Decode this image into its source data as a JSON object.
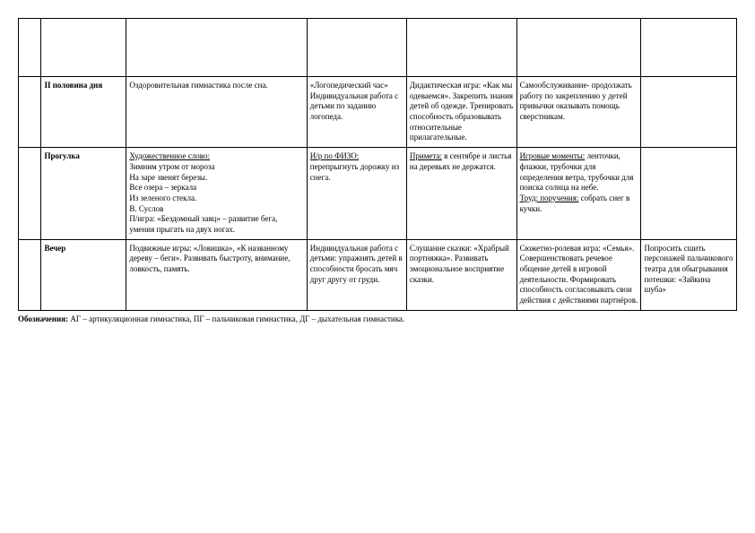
{
  "rows": [
    {
      "c1": "",
      "c2": "",
      "c3": "",
      "c4": "",
      "c5": "",
      "c6": ""
    },
    {
      "c1_bold": "II половина дня",
      "c2": "Оздоровительная гимнастика после сна.",
      "c3": "«Логопедический час» Индивидуальная работа с детьми по заданию логопеда.",
      "c4": "Дидактическая игра: «Как мы одеваемся». Закрепить знания детей об одежде. Тренировать способность образовывать относительные прилагательные.",
      "c5": "Самообслуживание- продолжать работу по закреплению у детей привычки оказывать помощь сверстникам.",
      "c6": ""
    },
    {
      "c1_bold": "Прогулка",
      "c2_heading": "Художественное слово:",
      "c2_body": "Зимним утром от мороза\nНа заре звенят березы.\nВсе озера – зеркала\nИз зеленого стекла.\nВ. Суслов\nП/игра: «Бездомный заяц» – развитие бега, умения прыгать на двух ногах.",
      "c3_lead": "И/р по ФИЗО:",
      "c3_rest": " перепрыгнуть дорожку из снега.",
      "c4_lead": "Примета:",
      "c4_rest": " в сентябре и листья на деревьях не держатся.",
      "c5_lead1": "Игровые моменты:",
      "c5_rest1": " ленточки, флажки, трубочки для определения ветра, трубочки для поиска солнца на небе.",
      "c5_lead2": "Труд: поручения:",
      "c5_rest2": " собрать снег в кучки.",
      "c6": ""
    },
    {
      "c1_bold": "Вечер",
      "c2": "Подвижные игры: «Ловишка», «К названному дереву – беги». Развивать быстроту, внимание, ловкость, память.",
      "c3": "Индивидуальная работа с детьми: упражнять детей в способности бросать мяч друг другу от груди.",
      "c4": "Слушание сказки: «Храбрый портняжка». Развивать эмоциональное восприятие сказки.",
      "c5": "Сюжетно-ролевая игра: «Семья». Совершенствовать речевое общение детей в игровой деятельности. Формировать способность согласовывать свои действия с действиями партнёров.",
      "c6": "Попросить сшить персонажей пальчикового театра для обыгрывания потешки: «Зайкина шуба»"
    }
  ],
  "footnote_label": "Обозначения:",
  "footnote_text": " АГ – артикуляционная гимнастика, ПГ – пальчиковая гимнастика,  ДГ – дыхательная гимнастика."
}
